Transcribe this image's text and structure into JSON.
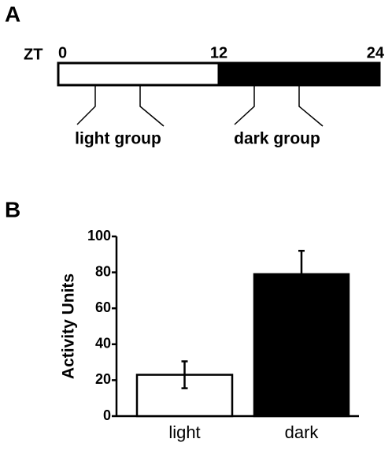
{
  "panel_a": {
    "label": "A",
    "axis_label": "ZT",
    "xlim": [
      0,
      24
    ],
    "xticks": [
      0,
      12,
      24
    ],
    "groups": [
      {
        "label": "light group"
      },
      {
        "label": "dark group"
      }
    ]
  },
  "chart_data": {
    "type": "bar",
    "panel_label": "B",
    "ylabel": "Activity Units",
    "categories": [
      "light",
      "dark"
    ],
    "values": [
      23,
      79
    ],
    "errors": [
      7.5,
      13
    ],
    "colors": [
      "#ffffff",
      "#000000"
    ],
    "ylim": [
      0,
      100
    ],
    "yticks": [
      0,
      20,
      40,
      60,
      80,
      100
    ]
  }
}
